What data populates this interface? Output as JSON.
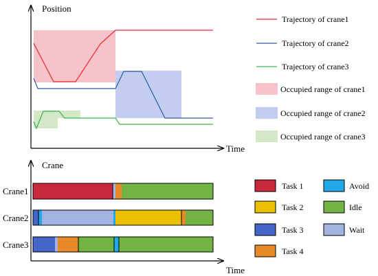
{
  "top_chart": {
    "y_axis_label": "Position",
    "x_axis_label": "Time",
    "legend": [
      {
        "label": "Trajectory of crane1",
        "kind": "line",
        "color": "#e8262b"
      },
      {
        "label": "Trajectory of crane2",
        "kind": "line",
        "color": "#2f5aa8"
      },
      {
        "label": "Trajectory of crane3",
        "kind": "line",
        "color": "#3ab34a"
      },
      {
        "label": "Occupied range of crane1",
        "kind": "swatch",
        "color": "#f6c3cb"
      },
      {
        "label": "Occupied range of crane2",
        "kind": "swatch",
        "color": "#c3cdef"
      },
      {
        "label": "Occupied range of crane3",
        "kind": "swatch",
        "color": "#d3e8c6"
      }
    ]
  },
  "bottom_chart": {
    "y_axis_label": "Crane",
    "x_axis_label": "Time",
    "rows": [
      "Crane1",
      "Crane2",
      "Crane3"
    ],
    "legend_col1": [
      {
        "label": "Task 1",
        "color": "#c8283b"
      },
      {
        "label": "Task 2",
        "color": "#ecc000"
      },
      {
        "label": "Task 3",
        "color": "#4466c8"
      },
      {
        "label": "Task 4",
        "color": "#e98a2a"
      }
    ],
    "legend_col2": [
      {
        "label": "Avoid",
        "color": "#22a8e8"
      },
      {
        "label": "Idle",
        "color": "#72b344"
      },
      {
        "label": "Wait",
        "color": "#a2b3e2"
      }
    ]
  }
}
